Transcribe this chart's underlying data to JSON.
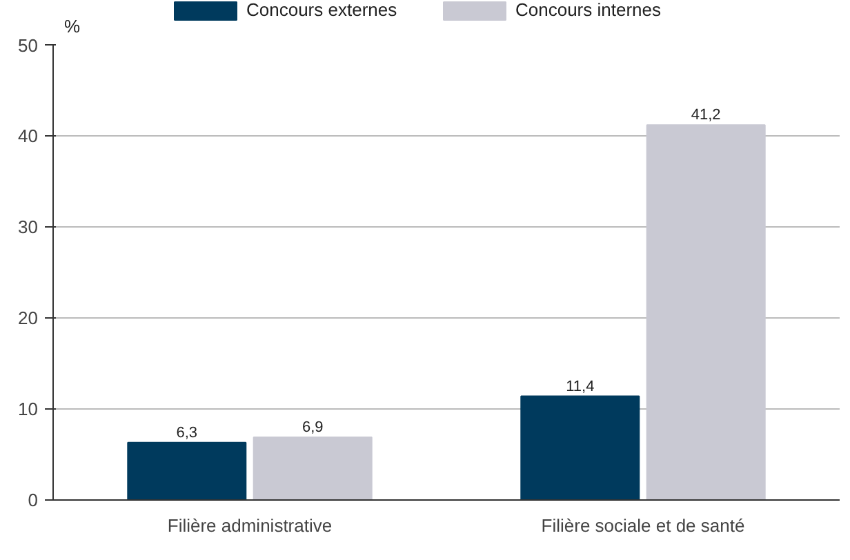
{
  "chart_data": {
    "type": "bar",
    "ylabel": "%",
    "categories": [
      "Filière administrative",
      "Filière sociale et de santé"
    ],
    "series": [
      {
        "name": "Concours externes",
        "color": "#003a5d",
        "values": [
          6.3,
          11.4
        ],
        "value_labels": [
          "6,3",
          "11,4"
        ]
      },
      {
        "name": "Concours internes",
        "color": "#c9c9d3",
        "values": [
          6.9,
          41.2
        ],
        "value_labels": [
          "6,9",
          "41,2"
        ]
      }
    ],
    "ylim": [
      0,
      50
    ],
    "yticks": [
      0,
      10,
      20,
      30,
      40,
      50
    ],
    "grid": "y",
    "legend": "top"
  }
}
